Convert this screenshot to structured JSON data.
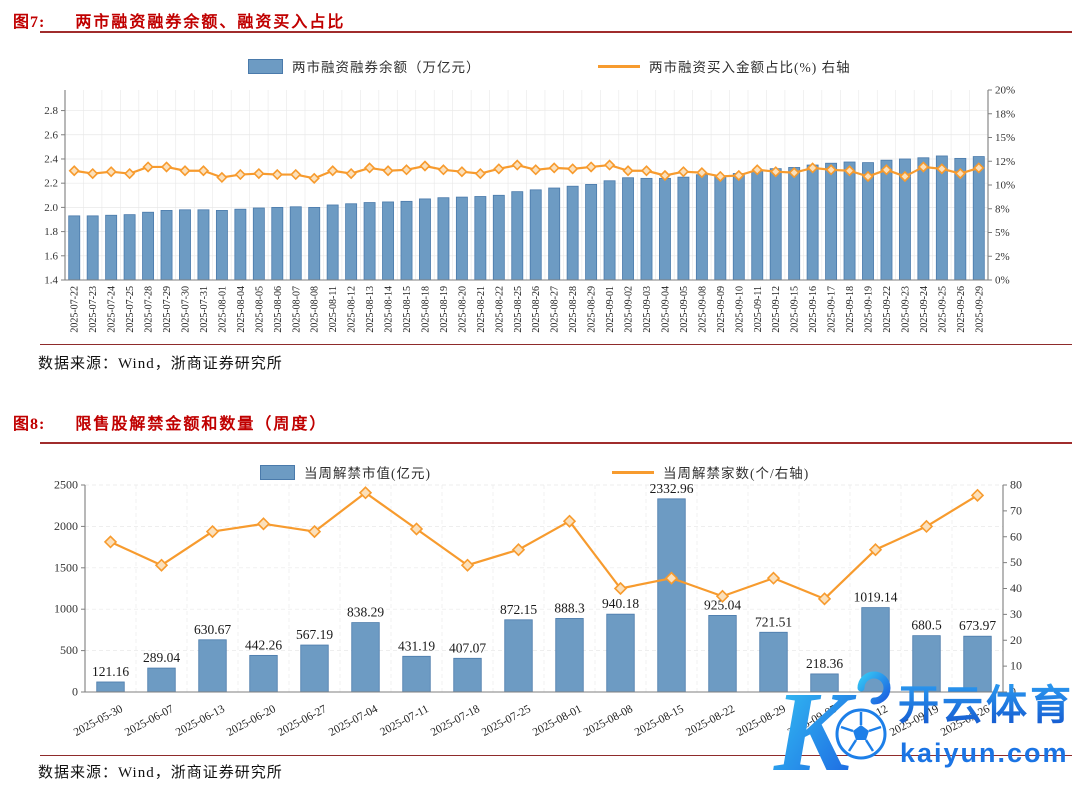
{
  "figure7": {
    "label": "图7:",
    "title": "两市融资融券余额、融资买入占比",
    "source": "数据来源：Wind，浙商证券研究所"
  },
  "figure8": {
    "label": "图8:",
    "title": "限售股解禁金额和数量（周度）",
    "source": "数据来源：Wind，浙商证券研究所"
  },
  "watermark": {
    "logo_letter": "K",
    "brand": "开云体育",
    "domain": "kaiyun.com"
  },
  "colors": {
    "bar_fill": "#6d9bc3",
    "bar_stroke": "#4a7aab",
    "line": "#f79b2e",
    "marker_fill": "#fbe0bb",
    "title_red": "#c00000",
    "rule_red": "#a02c2c",
    "axis": "#7f7f7f",
    "grid": "#e8e8e8",
    "text": "#333333",
    "watermark_blue": "#1b74e4",
    "watermark_cyan": "#35c6f4"
  },
  "chart_data": [
    {
      "type": "bar+line",
      "title": "两市融资融券余额、融资买入占比",
      "legend_position": "top",
      "grid": true,
      "categories": [
        "2025-07-22",
        "2025-07-23",
        "2025-07-24",
        "2025-07-25",
        "2025-07-28",
        "2025-07-29",
        "2025-07-30",
        "2025-07-31",
        "2025-08-01",
        "2025-08-04",
        "2025-08-05",
        "2025-08-06",
        "2025-08-07",
        "2025-08-08",
        "2025-08-11",
        "2025-08-12",
        "2025-08-13",
        "2025-08-14",
        "2025-08-15",
        "2025-08-18",
        "2025-08-19",
        "2025-08-20",
        "2025-08-21",
        "2025-08-22",
        "2025-08-25",
        "2025-08-26",
        "2025-08-27",
        "2025-08-28",
        "2025-08-29",
        "2025-09-01",
        "2025-09-02",
        "2025-09-03",
        "2025-09-04",
        "2025-09-05",
        "2025-09-08",
        "2025-09-09",
        "2025-09-10",
        "2025-09-11",
        "2025-09-12",
        "2025-09-15",
        "2025-09-16",
        "2025-09-17",
        "2025-09-18",
        "2025-09-19",
        "2025-09-22",
        "2025-09-23",
        "2025-09-24",
        "2025-09-25",
        "2025-09-26",
        "2025-09-29"
      ],
      "series": [
        {
          "name": "两市融资融券余额（万亿元）",
          "type": "bar",
          "axis": "left",
          "values": [
            1.93,
            1.93,
            1.935,
            1.94,
            1.96,
            1.975,
            1.98,
            1.98,
            1.975,
            1.985,
            1.995,
            2.0,
            2.005,
            2.0,
            2.02,
            2.03,
            2.04,
            2.045,
            2.05,
            2.07,
            2.08,
            2.085,
            2.09,
            2.1,
            2.13,
            2.145,
            2.16,
            2.175,
            2.19,
            2.22,
            2.245,
            2.24,
            2.24,
            2.25,
            2.27,
            2.26,
            2.28,
            2.3,
            2.32,
            2.33,
            2.35,
            2.365,
            2.375,
            2.37,
            2.39,
            2.4,
            2.41,
            2.425,
            2.405,
            2.42
          ]
        },
        {
          "name": "两市融资买入金额占比(%) 右轴",
          "type": "line",
          "axis": "right",
          "values": [
            11.5,
            11.2,
            11.4,
            11.2,
            11.9,
            11.9,
            11.5,
            11.5,
            10.8,
            11.1,
            11.2,
            11.1,
            11.1,
            10.7,
            11.5,
            11.2,
            11.8,
            11.5,
            11.6,
            12.0,
            11.6,
            11.4,
            11.2,
            11.7,
            12.1,
            11.6,
            11.8,
            11.7,
            11.9,
            12.1,
            11.5,
            11.5,
            11.0,
            11.4,
            11.3,
            10.9,
            11.0,
            11.6,
            11.4,
            11.3,
            11.8,
            11.6,
            11.5,
            10.9,
            11.6,
            10.9,
            11.9,
            11.7,
            11.2,
            11.8
          ]
        }
      ],
      "left_axis": {
        "min": 1.4,
        "max": 2.8,
        "tick_values": [
          1.4,
          1.6,
          1.8,
          2.0,
          2.2,
          2.4,
          2.6,
          2.8
        ],
        "tick_labels": [
          "1.4",
          "1.6",
          "1.8",
          "2.0",
          "2.2",
          "2.4",
          "2.6",
          "2.8"
        ]
      },
      "right_axis": {
        "min": 0,
        "max": 20,
        "tick_values": [
          0,
          2.5,
          5,
          7.5,
          10,
          12.5,
          15,
          17.5,
          20
        ],
        "tick_labels": [
          "0%",
          "2%",
          "5%",
          "8%",
          "10%",
          "12%",
          "15%",
          "18%",
          "20%"
        ]
      }
    },
    {
      "type": "bar+line",
      "title": "限售股解禁金额和数量（周度）",
      "legend_position": "top",
      "grid": true,
      "categories": [
        "2025-05-30",
        "2025-06-07",
        "2025-06-13",
        "2025-06-20",
        "2025-06-27",
        "2025-07-04",
        "2025-07-11",
        "2025-07-18",
        "2025-07-25",
        "2025-08-01",
        "2025-08-08",
        "2025-08-15",
        "2025-08-22",
        "2025-08-29",
        "2025-09-05",
        "2025-09-12",
        "2025-09-19",
        "2025-09-26"
      ],
      "series": [
        {
          "name": "当周解禁市值(亿元)",
          "type": "bar",
          "axis": "left",
          "values": [
            121.16,
            289.04,
            630.67,
            442.26,
            567.19,
            838.29,
            431.19,
            407.07,
            872.15,
            888.3,
            940.18,
            2332.96,
            925.04,
            721.51,
            218.36,
            1019.14,
            680.5,
            673.97
          ],
          "labels": [
            "121.16",
            "289.04",
            "630.67",
            "442.26",
            "567.19",
            "838.29",
            "431.19",
            "407.07",
            "872.15",
            "888.3",
            "940.18",
            "2332.96",
            "925.04",
            "721.51",
            "218.36",
            "1019.14",
            "680.5",
            "673.97"
          ]
        },
        {
          "name": "当周解禁家数(个/右轴)",
          "type": "line",
          "axis": "right",
          "values": [
            58,
            49,
            62,
            65,
            62,
            77,
            63,
            49,
            55,
            66,
            40,
            44,
            37,
            44,
            36,
            55,
            64,
            76
          ]
        }
      ],
      "left_axis": {
        "min": 0,
        "max": 2500,
        "tick_values": [
          0,
          500,
          1000,
          1500,
          2000,
          2500
        ],
        "tick_labels": [
          "0",
          "500",
          "1000",
          "1500",
          "2000",
          "2500"
        ]
      },
      "right_axis": {
        "min": 0,
        "max": 80,
        "tick_values": [
          0,
          10,
          20,
          30,
          40,
          50,
          60,
          70,
          80
        ],
        "tick_labels": [
          "0",
          "10",
          "20",
          "30",
          "40",
          "50",
          "60",
          "70",
          "80"
        ]
      }
    }
  ]
}
